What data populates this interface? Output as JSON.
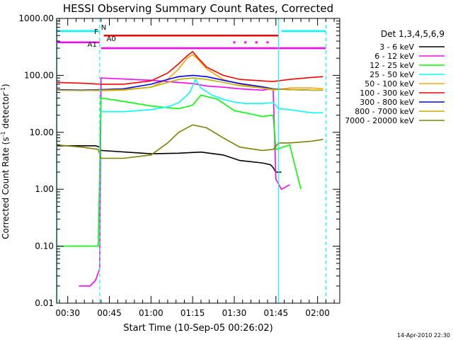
{
  "chart_data": {
    "type": "line",
    "title": "HESSI Observing Summary Count Rates, Corrected",
    "xlabel": "Start Time (10-Sep-05 00:26:02)",
    "ylabel_main": "Corrected Count Rate (s",
    "ylabel_sup": "-1",
    "ylabel_tail": " detector",
    "ylabel_end": ")",
    "xlim": [
      26.0,
      128.0
    ],
    "ylim": [
      0.01,
      1000
    ],
    "y_scale": "log",
    "x_ticks": [
      {
        "value": 30,
        "label": "00:30"
      },
      {
        "value": 45,
        "label": "00:45"
      },
      {
        "value": 60,
        "label": "01:00"
      },
      {
        "value": 75,
        "label": "01:15"
      },
      {
        "value": 90,
        "label": "01:30"
      },
      {
        "value": 105,
        "label": "01:45"
      },
      {
        "value": 120,
        "label": "02:00"
      }
    ],
    "y_ticks": [
      {
        "value": 1000,
        "label": "1000.00"
      },
      {
        "value": 100,
        "label": "100.00"
      },
      {
        "value": 10,
        "label": "10.00"
      },
      {
        "value": 1,
        "label": "1.00"
      },
      {
        "value": 0.1,
        "label": "0.10"
      },
      {
        "value": 0.01,
        "label": "0.01"
      }
    ],
    "legend_title": "Det 1,3,4,5,6,9",
    "legend_position": "right",
    "series": [
      {
        "name": "3 - 6 keV",
        "color": "#000000",
        "x": [
          26,
          40,
          41.5,
          42,
          60,
          70,
          78,
          86,
          92,
          100,
          103,
          104,
          105,
          107
        ],
        "y": [
          5.8,
          5.8,
          5.5,
          4.8,
          4.2,
          4.3,
          4.5,
          4.0,
          3.2,
          2.9,
          2.7,
          2.4,
          2.0,
          2.0
        ]
      },
      {
        "name": "6 - 12 keV",
        "color": "#ff00ff",
        "x": [
          34,
          38,
          40,
          41.5,
          42,
          60,
          70,
          75,
          80,
          86,
          92,
          100,
          104,
          105,
          107,
          110
        ],
        "y": [
          0.02,
          0.02,
          0.025,
          0.04,
          90,
          82,
          75,
          72,
          65,
          62,
          58,
          55,
          58,
          1.5,
          1.0,
          1.2
        ]
      },
      {
        "name": "12 - 25 keV",
        "color": "#00ff00",
        "x": [
          26,
          35,
          41,
          42,
          50,
          60,
          70,
          75,
          78,
          84,
          90,
          96,
          100,
          104,
          105,
          110,
          114
        ],
        "y": [
          0.1,
          0.1,
          0.1,
          40,
          35,
          29,
          26,
          30,
          45,
          38,
          24,
          21,
          19,
          20,
          5,
          6,
          1.0
        ]
      },
      {
        "name": "25 - 50 keV",
        "color": "#00ffff",
        "x": [
          42,
          50,
          60,
          66,
          70,
          74,
          76,
          78,
          82,
          86,
          90,
          94,
          100,
          104,
          106,
          110,
          118,
          122
        ],
        "y": [
          23,
          23,
          25,
          28,
          33,
          50,
          85,
          60,
          45,
          38,
          34,
          32,
          32,
          33,
          26,
          25,
          22,
          22
        ]
      },
      {
        "name": "50 - 100 keV",
        "color": "#ffa500",
        "x": [
          26,
          42,
          50,
          60,
          66,
          70,
          73,
          75,
          77,
          80,
          86,
          92,
          100,
          104,
          110,
          118,
          122
        ],
        "y": [
          55,
          54,
          55,
          62,
          85,
          130,
          200,
          230,
          190,
          130,
          85,
          70,
          60,
          55,
          60,
          60,
          58
        ]
      },
      {
        "name": "100 - 300 keV",
        "color": "#ff0000",
        "x": [
          26,
          35,
          42,
          50,
          60,
          66,
          70,
          73,
          75,
          77,
          80,
          86,
          92,
          100,
          104,
          110,
          118,
          122
        ],
        "y": [
          75,
          73,
          70,
          70,
          80,
          110,
          160,
          220,
          260,
          200,
          140,
          100,
          85,
          80,
          78,
          85,
          92,
          95
        ]
      },
      {
        "name": "300 - 800 keV",
        "color": "#0000ff",
        "x": [
          26,
          35,
          42,
          50,
          60,
          66,
          70,
          75,
          80,
          86,
          92,
          100,
          104,
          110,
          118,
          122
        ],
        "y": [
          56,
          55,
          56,
          58,
          70,
          85,
          95,
          100,
          95,
          82,
          72,
          63,
          58,
          56,
          55,
          55
        ]
      },
      {
        "name": "800 - 7000 keV",
        "color": "#bdb000",
        "x": [
          26,
          35,
          42,
          50,
          60,
          66,
          70,
          75,
          80,
          86,
          92,
          100,
          104,
          110,
          118,
          122
        ],
        "y": [
          55,
          54,
          55,
          56,
          62,
          75,
          85,
          90,
          85,
          75,
          66,
          60,
          57,
          56,
          55,
          55
        ]
      },
      {
        "name": "7000 - 20000 keV",
        "color": "#808000",
        "x": [
          26,
          35,
          41,
          42,
          50,
          60,
          66,
          70,
          75,
          80,
          86,
          92,
          100,
          104,
          106,
          110,
          118,
          122
        ],
        "y": [
          6.0,
          5.5,
          5.0,
          3.5,
          3.5,
          4.0,
          6.5,
          10,
          13.5,
          12,
          8,
          5.5,
          4.8,
          5.0,
          6.5,
          6.5,
          7.0,
          7.5
        ]
      }
    ],
    "vertical_lines": [
      {
        "x": 26.1,
        "style": "solid"
      },
      {
        "x": 41.5,
        "style": "dashed"
      },
      {
        "x": 106.0,
        "style": "solid"
      },
      {
        "x": 123.0,
        "style": "dashed"
      }
    ],
    "state_bars": [
      {
        "label": "N",
        "color": "#00ffff",
        "y": 600,
        "segments": [
          [
            26,
            41.5
          ],
          [
            107,
            123
          ]
        ],
        "label_x": 42.0,
        "label_side": "right"
      },
      {
        "label": "F",
        "color": "#ff0000",
        "y": 500,
        "segments": [
          [
            43,
            106
          ]
        ],
        "label_x": 41.0,
        "label_side": "left"
      },
      {
        "label": "A0",
        "color": "#ff00ff",
        "y": 380,
        "segments": [
          [
            26,
            41.5
          ]
        ],
        "label_x": 44.0,
        "label_side": "right"
      },
      {
        "label": "A1",
        "color": "#ff00ff",
        "y": 300,
        "segments": [
          [
            42,
            123
          ]
        ],
        "label_x": 40.5,
        "label_side": "left"
      }
    ],
    "dotted_markers": {
      "color": "#ff00ff",
      "y": 380,
      "x": [
        90,
        94,
        98,
        102
      ]
    },
    "footer_date": "14-Apr-2010 22:30"
  }
}
